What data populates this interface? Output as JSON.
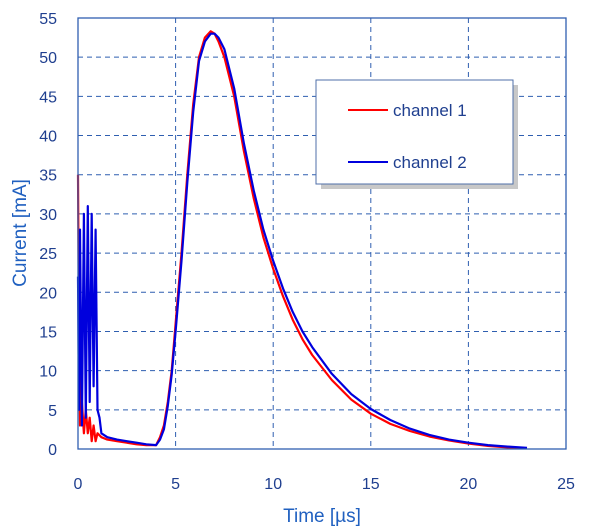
{
  "chart_data": {
    "type": "line",
    "title": "",
    "xlabel": "Time [µs]",
    "ylabel": "Current [mA]",
    "xlim": [
      0,
      25
    ],
    "ylim": [
      0,
      55
    ],
    "xticks": [
      0,
      5,
      10,
      15,
      20,
      25
    ],
    "yticks": [
      0,
      5,
      10,
      15,
      20,
      25,
      30,
      35,
      40,
      45,
      50,
      55
    ],
    "grid": true,
    "grid_style": "dashed",
    "legend_position": "top-right",
    "series": [
      {
        "name": "channel 1",
        "color": "#ff0000",
        "x": [
          0.0,
          0.05,
          0.1,
          0.2,
          0.3,
          0.4,
          0.5,
          0.6,
          0.7,
          0.8,
          0.9,
          1.0,
          1.2,
          1.5,
          2.0,
          2.5,
          3.0,
          3.5,
          4.0,
          4.2,
          4.4,
          4.6,
          4.8,
          5.0,
          5.3,
          5.6,
          5.9,
          6.2,
          6.5,
          6.8,
          7.0,
          7.2,
          7.5,
          8.0,
          8.5,
          9.0,
          9.5,
          10.0,
          10.5,
          11.0,
          11.5,
          12.0,
          13.0,
          14.0,
          15.0,
          16.0,
          17.0,
          18.0,
          19.0,
          20.0,
          21.0,
          22.0,
          23.0
        ],
        "values": [
          35,
          15,
          3,
          6,
          2,
          5,
          2,
          4,
          1,
          3,
          1,
          2,
          1.5,
          1.2,
          1.0,
          0.8,
          0.6,
          0.5,
          0.5,
          1.5,
          3,
          6,
          10,
          16,
          25,
          35,
          44,
          50,
          52.5,
          53.3,
          53,
          52,
          50,
          45,
          38,
          32,
          27,
          23,
          19.5,
          16.5,
          14,
          12,
          8.8,
          6.3,
          4.5,
          3.2,
          2.3,
          1.6,
          1.1,
          0.7,
          0.4,
          0.2,
          0.1
        ]
      },
      {
        "name": "channel 2",
        "color": "#0000dd",
        "x": [
          0.0,
          0.05,
          0.1,
          0.2,
          0.3,
          0.4,
          0.5,
          0.6,
          0.7,
          0.8,
          0.9,
          1.0,
          1.1,
          1.2,
          1.5,
          2.0,
          2.5,
          3.0,
          3.5,
          4.0,
          4.2,
          4.4,
          4.6,
          4.8,
          5.0,
          5.3,
          5.6,
          5.9,
          6.2,
          6.5,
          6.8,
          7.0,
          7.2,
          7.5,
          8.0,
          8.5,
          9.0,
          9.5,
          10.0,
          10.5,
          11.0,
          11.5,
          12.0,
          13.0,
          14.0,
          15.0,
          16.0,
          17.0,
          18.0,
          19.0,
          20.0,
          21.0,
          22.0,
          23.0
        ],
        "values": [
          22,
          5,
          28,
          3,
          30,
          4,
          31,
          6,
          30,
          8,
          28,
          5,
          4,
          2,
          1.5,
          1.2,
          1.0,
          0.8,
          0.6,
          0.5,
          1.2,
          2.5,
          5.5,
          9.5,
          15,
          24,
          34,
          43,
          49.5,
          52,
          53,
          53,
          52.5,
          51,
          46,
          39,
          33,
          28,
          24,
          20.5,
          17.5,
          15,
          13,
          9.6,
          7,
          5.1,
          3.7,
          2.6,
          1.8,
          1.2,
          0.8,
          0.5,
          0.3,
          0.15
        ]
      }
    ]
  },
  "colors": {
    "axis": "#2f5fb0",
    "grid": "#2f5fb0",
    "tick_text": "#1f3f8f",
    "axis_title": "#2060c0",
    "legend_border": "#4f6fa8"
  }
}
